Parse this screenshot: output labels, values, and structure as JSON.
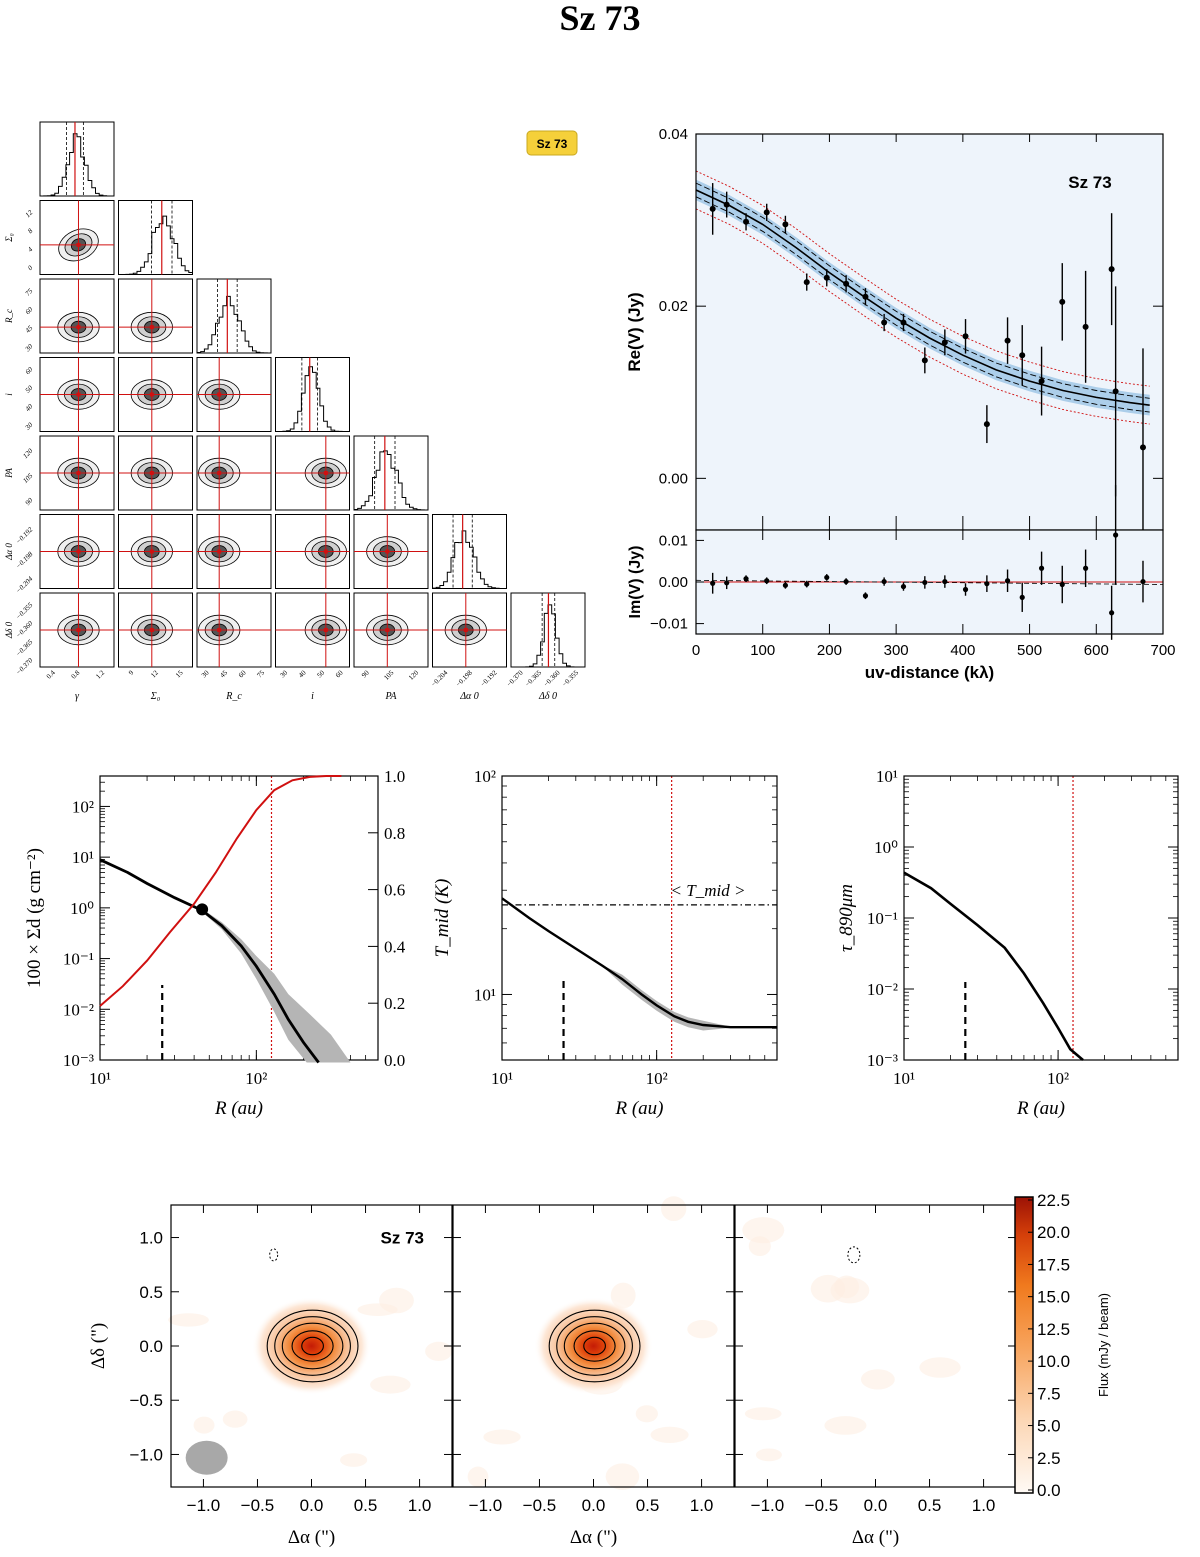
{
  "title": "Sz 73",
  "badge": "Sz 73",
  "colors": {
    "red": "#d01010",
    "blue": "#5a9fd4",
    "bg_blue": "#eef4fb",
    "gray": "#b5b5b5"
  },
  "corner": {
    "params": [
      "γ",
      "Σ₀",
      "R_c",
      "i",
      "PA",
      "Δα 0",
      "Δδ 0"
    ],
    "y_ticks": [
      [],
      [
        "0",
        "4",
        "8",
        "12"
      ],
      [
        "30",
        "45",
        "60",
        "75"
      ],
      [
        "30",
        "40",
        "50",
        "60"
      ],
      [
        "90",
        "105",
        "120"
      ],
      [
        "−0.204",
        "−0.198",
        "−0.192"
      ],
      [
        "−0.370",
        "−0.365",
        "−0.360",
        "−0.355"
      ]
    ],
    "x_ticks": [
      [
        "0.4",
        "0.8",
        "1.2"
      ],
      [
        "9",
        "12",
        "15"
      ],
      [
        "30",
        "45",
        "60",
        "75"
      ],
      [
        "30",
        "40",
        "50",
        "60"
      ],
      [
        "90",
        "105",
        "120"
      ],
      [
        "−0.204",
        "−0.198",
        "−0.192"
      ],
      [
        "−0.370",
        "−0.365",
        "−0.360",
        "−0.355"
      ]
    ]
  },
  "chart_data": [
    {
      "id": "re_visibility",
      "type": "scatter",
      "label": "Sz 73",
      "xlabel": "uv-distance (kλ)",
      "ylabel": "Re(V) (Jy)",
      "xlim": [
        0,
        700
      ],
      "ylim": [
        -0.006,
        0.04
      ],
      "x_ticks": [
        0,
        100,
        200,
        300,
        400,
        500,
        600,
        700
      ],
      "y_ticks": [
        {
          "v": 0.0,
          "label": "0.00"
        },
        {
          "v": 0.02,
          "label": "0.02"
        },
        {
          "v": 0.04,
          "label": "0.04"
        }
      ],
      "points": [
        {
          "x": 25,
          "y": 0.0313,
          "e": 0.003
        },
        {
          "x": 46,
          "y": 0.0318,
          "e": 0.0015
        },
        {
          "x": 75,
          "y": 0.0298,
          "e": 0.001
        },
        {
          "x": 106,
          "y": 0.0309,
          "e": 0.001
        },
        {
          "x": 134,
          "y": 0.0295,
          "e": 0.001
        },
        {
          "x": 166,
          "y": 0.0228,
          "e": 0.001
        },
        {
          "x": 196,
          "y": 0.0233,
          "e": 0.001
        },
        {
          "x": 225,
          "y": 0.0226,
          "e": 0.001
        },
        {
          "x": 254,
          "y": 0.0211,
          "e": 0.001
        },
        {
          "x": 282,
          "y": 0.0181,
          "e": 0.001
        },
        {
          "x": 311,
          "y": 0.0181,
          "e": 0.001
        },
        {
          "x": 343,
          "y": 0.0137,
          "e": 0.0015
        },
        {
          "x": 373,
          "y": 0.0158,
          "e": 0.0015
        },
        {
          "x": 404,
          "y": 0.0165,
          "e": 0.002
        },
        {
          "x": 436,
          "y": 0.0063,
          "e": 0.0022
        },
        {
          "x": 467,
          "y": 0.016,
          "e": 0.0027
        },
        {
          "x": 489,
          "y": 0.0143,
          "e": 0.0035
        },
        {
          "x": 518,
          "y": 0.0113,
          "e": 0.004
        },
        {
          "x": 549,
          "y": 0.0205,
          "e": 0.0045
        },
        {
          "x": 584,
          "y": 0.0176,
          "e": 0.0065
        },
        {
          "x": 623,
          "y": 0.0243,
          "e": 0.0065
        },
        {
          "x": 629,
          "y": 0.0101,
          "e": 0.0122
        },
        {
          "x": 670,
          "y": 0.0036,
          "e": 0.0115
        }
      ],
      "model_x": [
        0,
        50,
        100,
        150,
        200,
        250,
        300,
        350,
        400,
        450,
        500,
        550,
        600,
        650,
        680
      ],
      "model_y": [
        0.0335,
        0.0317,
        0.0295,
        0.0268,
        0.0239,
        0.0212,
        0.0186,
        0.0163,
        0.0143,
        0.0126,
        0.0113,
        0.0102,
        0.0094,
        0.0088,
        0.0085
      ]
    },
    {
      "id": "im_visibility",
      "type": "scatter",
      "ylabel": "Im(V) (Jy)",
      "xlim": [
        0,
        700
      ],
      "ylim": [
        -0.0125,
        0.0125
      ],
      "y_ticks": [
        {
          "v": 0.01,
          "label": "0.01"
        },
        {
          "v": 0.0,
          "label": "0.00"
        },
        {
          "v": -0.01,
          "label": "−0.01"
        }
      ],
      "points": [
        {
          "x": 25,
          "y": -0.0003,
          "e": 0.0025
        },
        {
          "x": 46,
          "y": -0.0002,
          "e": 0.0015
        },
        {
          "x": 75,
          "y": 0.0008,
          "e": 0.0008
        },
        {
          "x": 106,
          "y": 0.0003,
          "e": 0.0008
        },
        {
          "x": 134,
          "y": -0.0008,
          "e": 0.0008
        },
        {
          "x": 166,
          "y": -0.0005,
          "e": 0.0008
        },
        {
          "x": 196,
          "y": 0.0011,
          "e": 0.0008
        },
        {
          "x": 225,
          "y": 0.0001,
          "e": 0.0008
        },
        {
          "x": 254,
          "y": -0.0033,
          "e": 0.0008
        },
        {
          "x": 282,
          "y": 0.0001,
          "e": 0.001
        },
        {
          "x": 311,
          "y": -0.0011,
          "e": 0.001
        },
        {
          "x": 343,
          "y": -0.0001,
          "e": 0.0015
        },
        {
          "x": 373,
          "y": 0.0001,
          "e": 0.0015
        },
        {
          "x": 404,
          "y": -0.0018,
          "e": 0.0015
        },
        {
          "x": 436,
          "y": -0.0004,
          "e": 0.002
        },
        {
          "x": 467,
          "y": 0.0003,
          "e": 0.0027
        },
        {
          "x": 489,
          "y": -0.0037,
          "e": 0.0035
        },
        {
          "x": 518,
          "y": 0.0033,
          "e": 0.004
        },
        {
          "x": 549,
          "y": -0.0006,
          "e": 0.0045
        },
        {
          "x": 584,
          "y": 0.0033,
          "e": 0.0045
        },
        {
          "x": 623,
          "y": -0.0074,
          "e": 0.0065
        },
        {
          "x": 629,
          "y": 0.0113,
          "e": 0.012
        },
        {
          "x": 670,
          "y": 0.0001,
          "e": 0.005
        }
      ]
    },
    {
      "id": "surface_density",
      "type": "line",
      "xlabel": "R (au)",
      "ylabel": "100 × Σd (g cm⁻²)",
      "xlim": [
        10,
        600
      ],
      "ylim_log": [
        -3,
        2.6
      ],
      "y2lim": [
        0,
        1
      ],
      "y_ticks": [
        {
          "v": -3,
          "label": "10⁻³"
        },
        {
          "v": -2,
          "label": "10⁻²"
        },
        {
          "v": -1,
          "label": "10⁻¹"
        },
        {
          "v": 0,
          "label": "10⁰"
        },
        {
          "v": 1,
          "label": "10¹"
        },
        {
          "v": 2,
          "label": "10²"
        }
      ],
      "x_ticks": [
        {
          "v": 10,
          "label": "10¹"
        },
        {
          "v": 100,
          "label": "10²"
        }
      ],
      "y2_ticks": [
        "0.0",
        "0.2",
        "0.4",
        "0.6",
        "0.8",
        "1.0"
      ],
      "sigma_R": [
        10,
        15,
        20,
        30,
        45,
        60,
        80,
        100,
        130,
        160,
        200,
        250
      ],
      "sigma_log": [
        0.95,
        0.7,
        0.48,
        0.2,
        -0.05,
        -0.35,
        -0.75,
        -1.15,
        -1.7,
        -2.2,
        -2.65,
        -3.05
      ],
      "band_hi": [
        0.96,
        0.72,
        0.5,
        0.22,
        -0.02,
        -0.28,
        -0.62,
        -0.95,
        -1.3,
        -1.7,
        -2.1,
        -2.5,
        -3.05
      ],
      "band_lo": [
        0.94,
        0.68,
        0.46,
        0.18,
        -0.08,
        -0.42,
        -0.9,
        -1.4,
        -2.05,
        -2.6,
        -3.05
      ],
      "band_hi_R": [
        10,
        15,
        20,
        30,
        45,
        60,
        80,
        100,
        130,
        160,
        220,
        300,
        400
      ],
      "band_lo_R": [
        10,
        15,
        20,
        30,
        45,
        60,
        80,
        100,
        130,
        160,
        210
      ],
      "cum_R": [
        10,
        14,
        20,
        28,
        40,
        55,
        75,
        100,
        130,
        170,
        220,
        280,
        350
      ],
      "cum_y": [
        0.19,
        0.26,
        0.35,
        0.45,
        0.55,
        0.66,
        0.78,
        0.88,
        0.95,
        0.985,
        0.997,
        1.0,
        1.0
      ],
      "marker": {
        "R": 45,
        "log": -0.03
      },
      "beam_R": 25,
      "rout_R": 125
    },
    {
      "id": "temperature",
      "type": "line",
      "xlabel": "R (au)",
      "ylabel": "T_mid (K)",
      "annotation": "< T_mid >",
      "xlim": [
        10,
        600
      ],
      "ylim_log": [
        0.7,
        2
      ],
      "y_ticks": [
        {
          "v": 1,
          "label": "10¹"
        },
        {
          "v": 2,
          "label": "10²"
        }
      ],
      "x_ticks": [
        {
          "v": 10,
          "label": "10¹"
        },
        {
          "v": 100,
          "label": "10²"
        }
      ],
      "R": [
        10,
        15,
        20,
        30,
        45,
        60,
        80,
        100,
        130,
        160,
        200,
        300,
        450,
        600
      ],
      "log": [
        1.44,
        1.35,
        1.29,
        1.21,
        1.13,
        1.07,
        1.0,
        0.95,
        0.9,
        0.875,
        0.86,
        0.85,
        0.85,
        0.85
      ],
      "mean_log": 1.41,
      "beam_R": 25,
      "rout_R": 125
    },
    {
      "id": "optical_depth",
      "type": "line",
      "xlabel": "R (au)",
      "ylabel": "τ_890μm",
      "xlim": [
        10,
        600
      ],
      "ylim_log": [
        -3,
        1
      ],
      "y_ticks": [
        {
          "v": -3,
          "label": "10⁻³"
        },
        {
          "v": -2,
          "label": "10⁻²"
        },
        {
          "v": -1,
          "label": "10⁻¹"
        },
        {
          "v": 0,
          "label": "10⁰"
        },
        {
          "v": 1,
          "label": "10¹"
        }
      ],
      "x_ticks": [
        {
          "v": 10,
          "label": "10¹"
        },
        {
          "v": 100,
          "label": "10²"
        }
      ],
      "R": [
        10,
        15,
        20,
        30,
        45,
        60,
        80,
        100,
        120,
        145
      ],
      "log": [
        -0.36,
        -0.58,
        -0.8,
        -1.1,
        -1.42,
        -1.78,
        -2.2,
        -2.55,
        -2.85,
        -3.0
      ],
      "beam_R": 25,
      "rout_R": 125
    },
    {
      "id": "maps",
      "type": "heatmap",
      "label": "Sz 73",
      "xlabel": "Δα (\")",
      "ylabel": "Δδ (\")",
      "lim": [
        -1.3,
        1.3
      ],
      "x_ticks": [
        {
          "v": -1,
          "label": "−1.0"
        },
        {
          "v": -0.5,
          "label": "−0.5"
        },
        {
          "v": 0,
          "label": "0.0"
        },
        {
          "v": 0.5,
          "label": "0.5"
        },
        {
          "v": 1,
          "label": "1.0"
        }
      ],
      "y_ticks": [
        {
          "v": 1,
          "label": "1.0"
        },
        {
          "v": 0.5,
          "label": "0.5"
        },
        {
          "v": 0,
          "label": "0.0"
        },
        {
          "v": -0.5,
          "label": "−0.5"
        },
        {
          "v": -1,
          "label": "−1.0"
        }
      ],
      "colorbar_label": "Flux (mJy / beam)",
      "colorbar_ticks": [
        "0.0",
        "2.5",
        "5.0",
        "7.5",
        "10.0",
        "12.5",
        "15.0",
        "17.5",
        "20.0",
        "22.5"
      ],
      "colorbar_max": 22.5,
      "peak_flux": 22.5
    }
  ]
}
